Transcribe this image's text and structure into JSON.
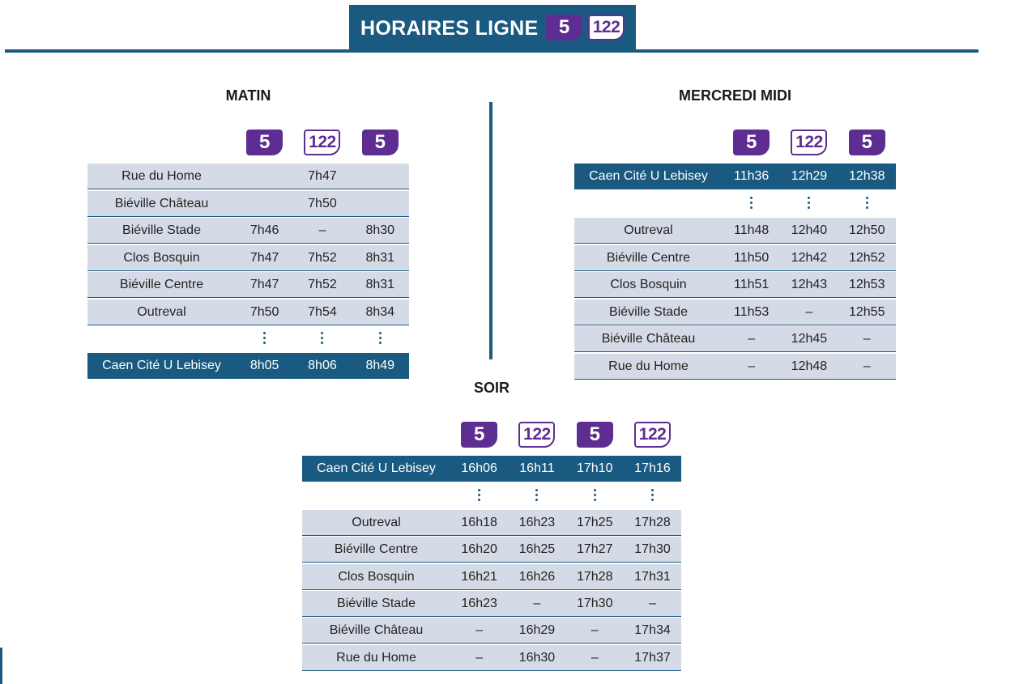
{
  "header": {
    "title": "HORAIRES LIGNE",
    "badge_primary": "5",
    "badge_secondary": "122"
  },
  "matin": {
    "title": "MATIN",
    "badges": [
      "5",
      "122",
      "5"
    ],
    "rows": [
      {
        "stop": "Rue du Home",
        "times": [
          "",
          "7h47",
          ""
        ]
      },
      {
        "stop": "Biéville Château",
        "times": [
          "",
          "7h50",
          ""
        ]
      },
      {
        "stop": "Biéville Stade",
        "times": [
          "7h46",
          "–",
          "8h30"
        ]
      },
      {
        "stop": "Clos Bosquin",
        "times": [
          "7h47",
          "7h52",
          "8h31"
        ]
      },
      {
        "stop": "Biéville Centre",
        "times": [
          "7h47",
          "7h52",
          "8h31"
        ]
      },
      {
        "stop": "Outreval",
        "times": [
          "7h50",
          "7h54",
          "8h34"
        ]
      }
    ],
    "terminus": {
      "stop": "Caen Cité U Lebisey",
      "times": [
        "8h05",
        "8h06",
        "8h49"
      ]
    }
  },
  "mercredi": {
    "title": "MERCREDI MIDI",
    "badges": [
      "5",
      "122",
      "5"
    ],
    "origin": {
      "stop": "Caen Cité U Lebisey",
      "times": [
        "11h36",
        "12h29",
        "12h38"
      ]
    },
    "rows": [
      {
        "stop": "Outreval",
        "times": [
          "11h48",
          "12h40",
          "12h50"
        ]
      },
      {
        "stop": "Biéville Centre",
        "times": [
          "11h50",
          "12h42",
          "12h52"
        ]
      },
      {
        "stop": "Clos Bosquin",
        "times": [
          "11h51",
          "12h43",
          "12h53"
        ]
      },
      {
        "stop": "Biéville Stade",
        "times": [
          "11h53",
          "–",
          "12h55"
        ]
      },
      {
        "stop": "Biéville Château",
        "times": [
          "–",
          "12h45",
          "–"
        ]
      },
      {
        "stop": "Rue du Home",
        "times": [
          "–",
          "12h48",
          "–"
        ]
      }
    ]
  },
  "soir": {
    "title": "SOIR",
    "badges": [
      "5",
      "122",
      "5",
      "122"
    ],
    "origin": {
      "stop": "Caen Cité U Lebisey",
      "times": [
        "16h06",
        "16h11",
        "17h10",
        "17h16"
      ]
    },
    "rows": [
      {
        "stop": "Outreval",
        "times": [
          "16h18",
          "16h23",
          "17h25",
          "17h28"
        ]
      },
      {
        "stop": "Biéville Centre",
        "times": [
          "16h20",
          "16h25",
          "17h27",
          "17h30"
        ]
      },
      {
        "stop": "Clos Bosquin",
        "times": [
          "16h21",
          "16h26",
          "17h28",
          "17h31"
        ]
      },
      {
        "stop": "Biéville Stade",
        "times": [
          "16h23",
          "–",
          "17h30",
          "–"
        ]
      },
      {
        "stop": "Biéville Château",
        "times": [
          "–",
          "16h29",
          "–",
          "17h34"
        ]
      },
      {
        "stop": "Rue du Home",
        "times": [
          "–",
          "16h30",
          "–",
          "17h37"
        ]
      }
    ]
  },
  "colors": {
    "brand_blue": "#1a5a80",
    "line5_purple": "#5e2d91",
    "row_light": "#d5dbe6"
  }
}
